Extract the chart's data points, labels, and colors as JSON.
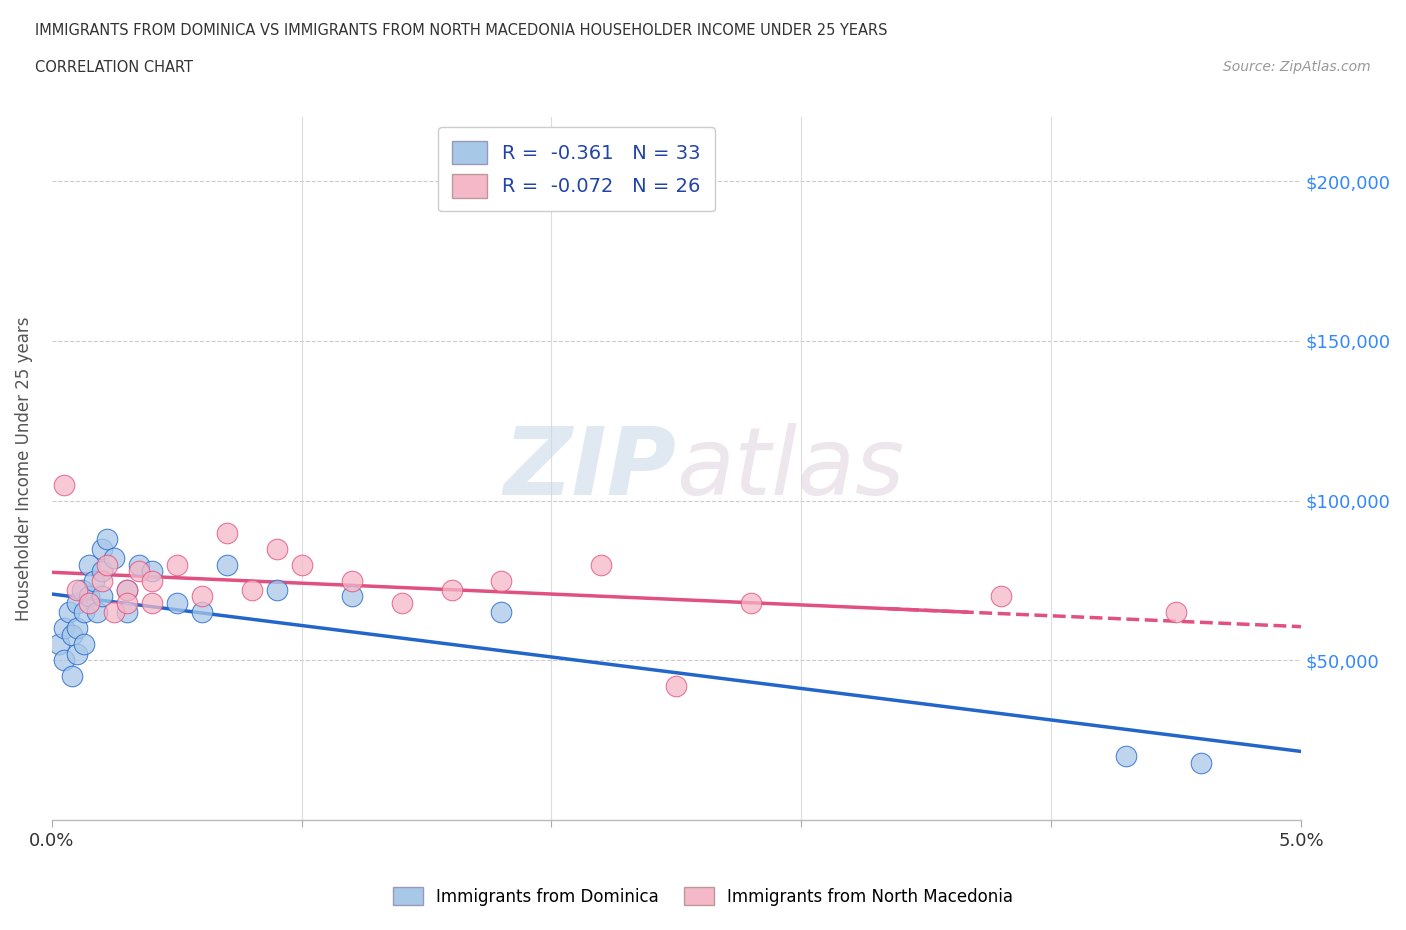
{
  "title_line1": "IMMIGRANTS FROM DOMINICA VS IMMIGRANTS FROM NORTH MACEDONIA HOUSEHOLDER INCOME UNDER 25 YEARS",
  "title_line2": "CORRELATION CHART",
  "source_text": "Source: ZipAtlas.com",
  "ylabel": "Householder Income Under 25 years",
  "xlim": [
    0.0,
    0.05
  ],
  "ylim": [
    0,
    220000
  ],
  "legend_label1": "Immigrants from Dominica",
  "legend_label2": "Immigrants from North Macedonia",
  "r1": -0.361,
  "n1": 33,
  "r2": -0.072,
  "n2": 26,
  "color1": "#a8c8e8",
  "color2": "#f4b8c8",
  "line_color1": "#2266cc",
  "line_color2": "#e05080",
  "watermark_zip": "ZIP",
  "watermark_atlas": "atlas",
  "background_color": "#ffffff",
  "dominica_x": [
    0.0003,
    0.0005,
    0.0005,
    0.0007,
    0.0008,
    0.0008,
    0.001,
    0.001,
    0.001,
    0.0012,
    0.0013,
    0.0013,
    0.0015,
    0.0015,
    0.0017,
    0.0018,
    0.002,
    0.002,
    0.002,
    0.0022,
    0.0025,
    0.003,
    0.003,
    0.0035,
    0.004,
    0.005,
    0.006,
    0.007,
    0.009,
    0.012,
    0.018,
    0.043,
    0.046
  ],
  "dominica_y": [
    55000,
    60000,
    50000,
    65000,
    58000,
    45000,
    68000,
    60000,
    52000,
    72000,
    65000,
    55000,
    80000,
    70000,
    75000,
    65000,
    85000,
    78000,
    70000,
    88000,
    82000,
    65000,
    72000,
    80000,
    78000,
    68000,
    65000,
    80000,
    72000,
    70000,
    65000,
    20000,
    18000
  ],
  "macedonia_x": [
    0.0005,
    0.001,
    0.0015,
    0.002,
    0.0022,
    0.0025,
    0.003,
    0.003,
    0.0035,
    0.004,
    0.004,
    0.005,
    0.006,
    0.007,
    0.008,
    0.009,
    0.01,
    0.012,
    0.014,
    0.016,
    0.018,
    0.022,
    0.025,
    0.028,
    0.038,
    0.045
  ],
  "macedonia_y": [
    105000,
    72000,
    68000,
    75000,
    80000,
    65000,
    72000,
    68000,
    78000,
    68000,
    75000,
    80000,
    70000,
    90000,
    72000,
    85000,
    80000,
    75000,
    68000,
    72000,
    75000,
    80000,
    42000,
    68000,
    70000,
    65000
  ]
}
